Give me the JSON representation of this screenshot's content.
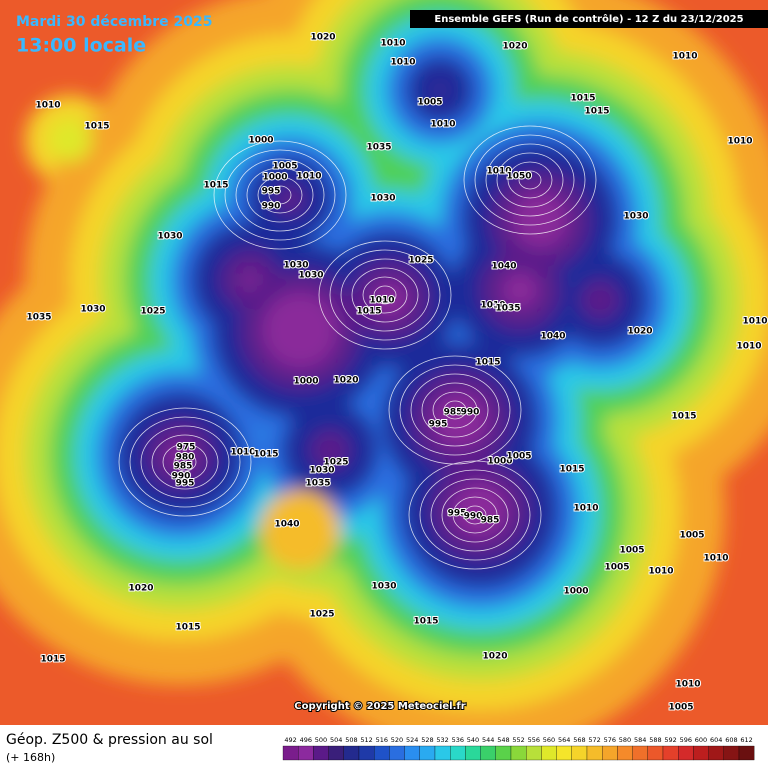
{
  "header": {
    "date": "Mardi 30 décembre 2025",
    "time": "13:00 locale",
    "run": "Ensemble GEFS  (Run de contrôle)  - 12 Z du 23/12/2025"
  },
  "copyright": "Copyright © 2025 Meteociel.fr",
  "footer": {
    "title": "Géop. Z500 & pression au sol",
    "lead": "(+ 168h)"
  },
  "isobar_labels": [
    1020,
    1010,
    1010,
    1020,
    1010,
    1010,
    1015,
    1005,
    1010,
    1015,
    1015,
    1000,
    1035,
    1010,
    1005,
    1000,
    1010,
    995,
    990,
    1015,
    1030,
    1010,
    1050,
    1030,
    1030,
    1030,
    1030,
    1025,
    1040,
    1010,
    1015,
    1010,
    1035,
    1035,
    1030,
    1025,
    1020,
    1040,
    1010,
    1010,
    1000,
    1020,
    1015,
    985,
    990,
    995,
    1015,
    975,
    980,
    985,
    990,
    995,
    1010,
    1015,
    1025,
    1030,
    1035,
    1000,
    1005,
    1015,
    995,
    990,
    985,
    1010,
    1040,
    1005,
    1005,
    1005,
    1010,
    1010,
    1030,
    1000,
    1020,
    1025,
    1015,
    1015,
    1020,
    1015,
    1010,
    1005
  ],
  "scale": {
    "labels": [
      492,
      496,
      500,
      504,
      508,
      512,
      516,
      520,
      524,
      528,
      532,
      536,
      540,
      544,
      548,
      552,
      556,
      560,
      564,
      568,
      572,
      576,
      580,
      584,
      588,
      592,
      596,
      600,
      604,
      608,
      612
    ],
    "colors": [
      "#7a1d8c",
      "#8c2a9e",
      "#5b1a88",
      "#3a1f7a",
      "#232a8e",
      "#1f3aa8",
      "#1f52c8",
      "#2a6ee0",
      "#2a8ef0",
      "#2aaaf0",
      "#2ac8e8",
      "#2ad8c8",
      "#2ad89a",
      "#3ad06a",
      "#5ad24a",
      "#8ad83a",
      "#b8e03a",
      "#dfe82a",
      "#f5e52a",
      "#f5d42a",
      "#f5bc2a",
      "#f5a52a",
      "#f58a2a",
      "#f0702a",
      "#ec582a",
      "#e4402a",
      "#d42a2a",
      "#bc1e1e",
      "#a01818",
      "#861414",
      "#6a1010"
    ]
  }
}
